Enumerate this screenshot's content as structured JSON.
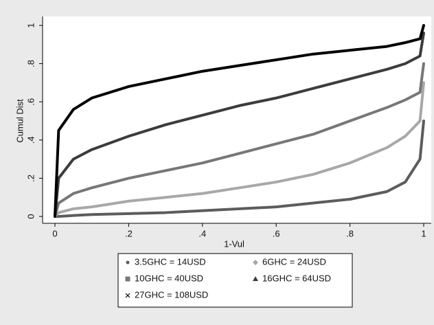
{
  "chart_data": {
    "type": "line",
    "x_label": "1-Vul",
    "y_label": "Cumul Dist",
    "x": [
      0,
      0.01,
      0.05,
      0.1,
      0.2,
      0.3,
      0.4,
      0.5,
      0.6,
      0.7,
      0.8,
      0.9,
      0.95,
      0.99,
      1
    ],
    "series": [
      {
        "name": "3.5GHC = 14USD",
        "color": "#5c5c5c",
        "marker": "circle",
        "values": [
          0,
          0,
          0.005,
          0.01,
          0.015,
          0.02,
          0.03,
          0.04,
          0.05,
          0.07,
          0.09,
          0.13,
          0.18,
          0.3,
          0.5
        ]
      },
      {
        "name": "6GHC = 24USD",
        "color": "#a8a8a8",
        "marker": "diamond",
        "values": [
          0,
          0.02,
          0.04,
          0.05,
          0.08,
          0.1,
          0.12,
          0.15,
          0.18,
          0.22,
          0.28,
          0.36,
          0.42,
          0.5,
          0.7
        ]
      },
      {
        "name": "10GHC = 40USD",
        "color": "#777777",
        "marker": "square",
        "values": [
          0,
          0.07,
          0.12,
          0.15,
          0.2,
          0.24,
          0.28,
          0.33,
          0.38,
          0.43,
          0.5,
          0.57,
          0.61,
          0.65,
          0.8
        ]
      },
      {
        "name": "16GHC = 64USD",
        "color": "#3c3c3c",
        "marker": "triangle",
        "values": [
          0,
          0.2,
          0.3,
          0.35,
          0.42,
          0.48,
          0.53,
          0.58,
          0.62,
          0.67,
          0.72,
          0.77,
          0.8,
          0.84,
          0.96
        ]
      },
      {
        "name": "27GHC = 108USD",
        "color": "#000000",
        "marker": "x",
        "values": [
          0,
          0.45,
          0.56,
          0.62,
          0.68,
          0.72,
          0.76,
          0.79,
          0.82,
          0.85,
          0.87,
          0.89,
          0.91,
          0.93,
          1
        ]
      }
    ],
    "xlim": [
      0,
      1
    ],
    "ylim": [
      0,
      1
    ],
    "xticks": [
      0,
      {
        "value": 0.2,
        "label": ".2"
      },
      {
        "value": 0.4,
        "label": ".4"
      },
      {
        "value": 0.6,
        "label": ".6"
      },
      {
        "value": 0.8,
        "label": ".8"
      },
      1
    ],
    "yticks": [
      0,
      {
        "value": 0.2,
        "label": ".2"
      },
      {
        "value": 0.4,
        "label": ".4"
      },
      {
        "value": 0.6,
        "label": ".6"
      },
      {
        "value": 0.8,
        "label": ".8"
      },
      1
    ]
  }
}
